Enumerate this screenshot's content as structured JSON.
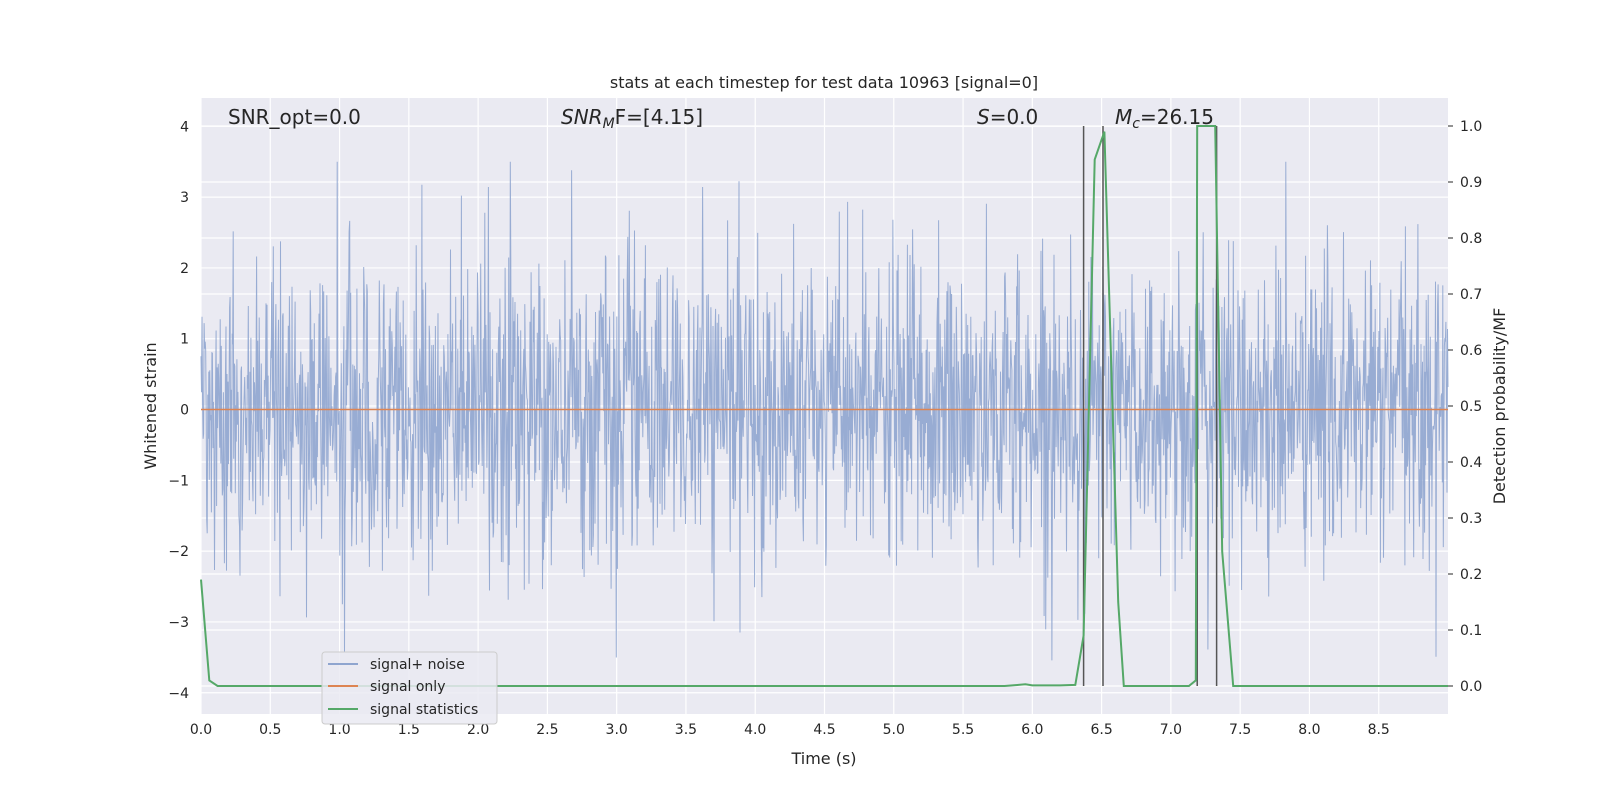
{
  "chart_data": {
    "type": "line",
    "title": "stats at each timestep for test data 10963 [signal=0]",
    "xlabel": "Time (s)",
    "ylabel": "Whitened strain",
    "y2label": "Detection probability/MF",
    "xlim": [
      0.0,
      9.0
    ],
    "ylim": [
      -4.3,
      4.4
    ],
    "y2lim": [
      -0.05,
      1.05
    ],
    "xticks": [
      "0.0",
      "0.5",
      "1.0",
      "1.5",
      "2.0",
      "2.5",
      "3.0",
      "3.5",
      "4.0",
      "4.5",
      "5.0",
      "5.5",
      "6.0",
      "6.5",
      "7.0",
      "7.5",
      "8.0",
      "8.5"
    ],
    "yticks": [
      "4",
      "3",
      "2",
      "1",
      "0",
      "−1",
      "−2",
      "−3",
      "−4"
    ],
    "y2ticks": [
      "1.0",
      "0.9",
      "0.8",
      "0.7",
      "0.6",
      "0.5",
      "0.4",
      "0.3",
      "0.2",
      "0.1",
      "0.0"
    ],
    "grid": true,
    "legend_position": "lower-left",
    "annotations": {
      "snr_opt": "SNR_opt=0.0",
      "snr_mf_main": "SNR",
      "snr_mf_sub": "M",
      "snr_mf_tail": "F=[4.15]",
      "s_main": "S",
      "s_tail": "=0.0",
      "mc_main": "M",
      "mc_sub": "c",
      "mc_tail": "=26.15"
    },
    "series": [
      {
        "name": "signal+ noise",
        "color": "#8fa5cf",
        "envelope": {
          "typical_abs": 1.0,
          "peak_max": 3.5,
          "peak_min": -3.9
        }
      },
      {
        "name": "signal only",
        "color": "#dd8452",
        "y": 0.0
      },
      {
        "name": "signal statistics",
        "color": "#55a868",
        "x": [
          0.0,
          0.06,
          0.12,
          0.5,
          1.0,
          2.0,
          3.0,
          4.0,
          5.0,
          5.5,
          5.8,
          5.9,
          5.95,
          6.0,
          6.2,
          6.31,
          6.37,
          6.42,
          6.45,
          6.52,
          6.62,
          6.66,
          7.0,
          7.13,
          7.18,
          7.19,
          7.21,
          7.26,
          7.32,
          7.37,
          7.45,
          7.5,
          8.0,
          8.5,
          9.0
        ],
        "y": [
          0.19,
          0.01,
          0.0,
          0.0,
          0.0,
          0.0,
          0.0,
          0.0,
          0.0,
          0.0,
          0.0,
          0.002,
          0.003,
          0.001,
          0.001,
          0.002,
          0.09,
          0.62,
          0.94,
          0.99,
          0.15,
          0.0,
          0.0,
          0.0,
          0.01,
          1.0,
          1.0,
          1.0,
          1.0,
          0.24,
          0.0,
          0.0,
          0.0,
          0.0,
          0.0
        ]
      }
    ],
    "vlines_x": [
      6.37,
      6.51,
      7.19,
      7.33
    ],
    "vlines_color": "#555555"
  }
}
